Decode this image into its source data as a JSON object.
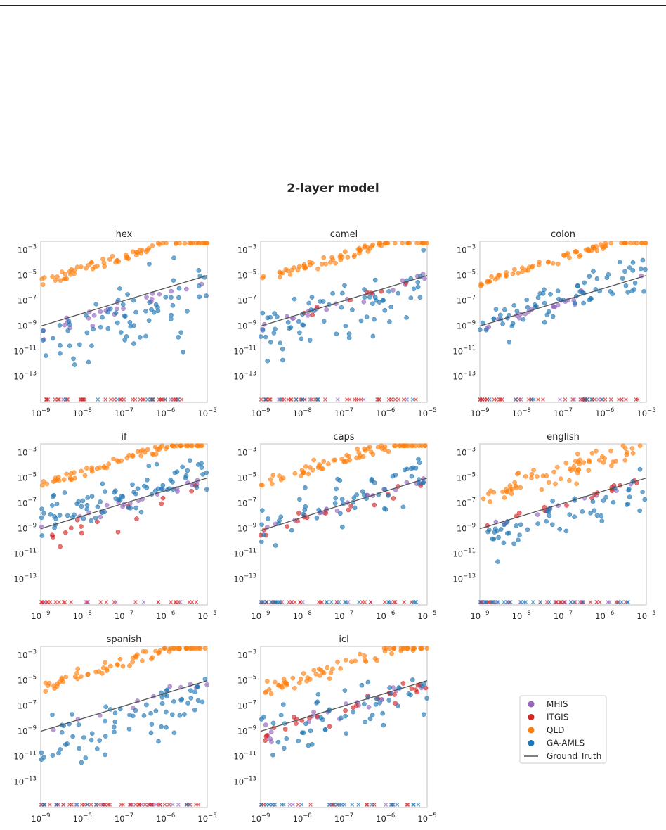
{
  "figure": {
    "title": "2-layer model"
  },
  "colors": {
    "MHIS": "#9467bd",
    "ITGIS": "#d62728",
    "QLD": "#ff7f0e",
    "GA-AMLS": "#1f77b4",
    "Ground Truth": "#555555"
  },
  "legend": {
    "placement": "bottom-right empty cell",
    "entries": [
      {
        "label": "MHIS",
        "kind": "marker",
        "color": "#9467bd"
      },
      {
        "label": "ITGIS",
        "kind": "marker",
        "color": "#d62728"
      },
      {
        "label": "QLD",
        "kind": "marker",
        "color": "#ff7f0e"
      },
      {
        "label": "GA-AMLS",
        "kind": "marker",
        "color": "#1f77b4"
      },
      {
        "label": "Ground Truth",
        "kind": "line",
        "color": "#555555"
      }
    ]
  },
  "chart_data": [
    {
      "type": "scatter",
      "title": "hex",
      "xscale": "log",
      "yscale": "log",
      "xlim": [
        1e-09,
        1e-05
      ],
      "ylim": [
        3e-15,
        0.005
      ],
      "xticks": [
        "10^-9",
        "10^-8",
        "10^-7",
        "10^-6",
        "10^-5"
      ],
      "yticks": [
        "10^-3",
        "10^-5",
        "10^-7",
        "10^-9",
        "10^-11",
        "10^-13"
      ],
      "ground_truth": {
        "x": [
          1e-09,
          1e-05
        ],
        "y": [
          1e-09,
          1e-05
        ]
      },
      "series": [
        {
          "name": "MHIS",
          "approx_log10_spread": [
            -1.0,
            0.3
          ],
          "zero_estimates": "few"
        },
        {
          "name": "ITGIS",
          "approx_log10_spread": null,
          "zero_estimates": "nearly all"
        },
        {
          "name": "QLD",
          "approx_log10_spread": [
            3.0,
            4.0
          ],
          "zero_estimates": "none"
        },
        {
          "name": "GA-AMLS",
          "approx_log10_spread": [
            -5.0,
            2.0
          ],
          "zero_estimates": "few"
        }
      ]
    },
    {
      "type": "scatter",
      "title": "camel",
      "xscale": "log",
      "yscale": "log",
      "xlim": [
        1e-09,
        1e-05
      ],
      "ylim": [
        3e-15,
        0.005
      ],
      "xticks": [
        "10^-9",
        "10^-8",
        "10^-7",
        "10^-6",
        "10^-5"
      ],
      "yticks": [
        "10^-3",
        "10^-5",
        "10^-7",
        "10^-9",
        "10^-11",
        "10^-13"
      ],
      "ground_truth": {
        "x": [
          1e-09,
          1e-05
        ],
        "y": [
          1e-09,
          1e-05
        ]
      },
      "series": [
        {
          "name": "MHIS",
          "approx_log10_spread": [
            -0.6,
            0.4
          ],
          "zero_estimates": "some"
        },
        {
          "name": "ITGIS",
          "approx_log10_spread": [
            -0.4,
            0.4
          ],
          "zero_estimates": "most"
        },
        {
          "name": "QLD",
          "approx_log10_spread": [
            3.2,
            4.0
          ],
          "zero_estimates": "none"
        },
        {
          "name": "GA-AMLS",
          "approx_log10_spread": [
            -3.0,
            1.8
          ],
          "zero_estimates": "few"
        }
      ]
    },
    {
      "type": "scatter",
      "title": "colon",
      "xscale": "log",
      "yscale": "log",
      "xlim": [
        1e-09,
        1e-05
      ],
      "ylim": [
        3e-15,
        0.005
      ],
      "xticks": [
        "10^-9",
        "10^-8",
        "10^-7",
        "10^-6",
        "10^-5"
      ],
      "yticks": [
        "10^-3",
        "10^-5",
        "10^-7",
        "10^-9",
        "10^-11",
        "10^-13"
      ],
      "ground_truth": {
        "x": [
          1e-09,
          1e-05
        ],
        "y": [
          1e-09,
          1e-05
        ]
      },
      "series": [
        {
          "name": "MHIS",
          "approx_log10_spread": [
            -0.6,
            0.3
          ],
          "zero_estimates": "some"
        },
        {
          "name": "ITGIS",
          "approx_log10_spread": null,
          "zero_estimates": "nearly all"
        },
        {
          "name": "QLD",
          "approx_log10_spread": [
            3.0,
            3.8
          ],
          "zero_estimates": "none"
        },
        {
          "name": "GA-AMLS",
          "approx_log10_spread": [
            -1.5,
            2.0
          ],
          "zero_estimates": "few"
        }
      ]
    },
    {
      "type": "scatter",
      "title": "if",
      "xscale": "log",
      "yscale": "log",
      "xlim": [
        1e-09,
        1e-05
      ],
      "ylim": [
        3e-15,
        0.005
      ],
      "xticks": [
        "10^-9",
        "10^-8",
        "10^-7",
        "10^-6",
        "10^-5"
      ],
      "yticks": [
        "10^-3",
        "10^-5",
        "10^-7",
        "10^-9",
        "10^-11",
        "10^-13"
      ],
      "ground_truth": {
        "x": [
          1e-09,
          1e-05
        ],
        "y": [
          1e-09,
          1e-05
        ]
      },
      "series": [
        {
          "name": "MHIS",
          "approx_log10_spread": [
            -0.5,
            0.3
          ],
          "zero_estimates": "some"
        },
        {
          "name": "ITGIS",
          "approx_log10_spread": [
            -2.0,
            0.2
          ],
          "zero_estimates": "many"
        },
        {
          "name": "QLD",
          "approx_log10_spread": [
            3.0,
            4.0
          ],
          "zero_estimates": "none"
        },
        {
          "name": "GA-AMLS",
          "approx_log10_spread": [
            -1.0,
            2.5
          ],
          "zero_estimates": "none"
        }
      ]
    },
    {
      "type": "scatter",
      "title": "caps",
      "xscale": "log",
      "yscale": "log",
      "xlim": [
        1e-09,
        1e-05
      ],
      "ylim": [
        3e-15,
        0.005
      ],
      "xticks": [
        "10^-9",
        "10^-8",
        "10^-7",
        "10^-6",
        "10^-5"
      ],
      "yticks": [
        "10^-3",
        "10^-5",
        "10^-7",
        "10^-9",
        "10^-11",
        "10^-13"
      ],
      "ground_truth": {
        "x": [
          1e-09,
          1e-05
        ],
        "y": [
          7e-10,
          1e-05
        ]
      },
      "series": [
        {
          "name": "MHIS",
          "approx_log10_spread": [
            -0.5,
            0.3
          ],
          "zero_estimates": "some"
        },
        {
          "name": "ITGIS",
          "approx_log10_spread": [
            -1.2,
            0.4
          ],
          "zero_estimates": "many"
        },
        {
          "name": "QLD",
          "approx_log10_spread": [
            3.0,
            4.0
          ],
          "zero_estimates": "none"
        },
        {
          "name": "GA-AMLS",
          "approx_log10_spread": [
            -2.0,
            2.0
          ],
          "zero_estimates": "some"
        }
      ]
    },
    {
      "type": "scatter",
      "title": "english",
      "xscale": "log",
      "yscale": "log",
      "xlim": [
        1e-09,
        1e-05
      ],
      "ylim": [
        3e-15,
        0.005
      ],
      "xticks": [
        "10^-9",
        "10^-8",
        "10^-7",
        "10^-6",
        "10^-5"
      ],
      "yticks": [
        "10^-3",
        "10^-5",
        "10^-7",
        "10^-9",
        "10^-11",
        "10^-13"
      ],
      "ground_truth": {
        "x": [
          1e-09,
          1e-05
        ],
        "y": [
          1e-09,
          1e-05
        ]
      },
      "series": [
        {
          "name": "MHIS",
          "approx_log10_spread": [
            -0.5,
            0.3
          ],
          "zero_estimates": "many"
        },
        {
          "name": "ITGIS",
          "approx_log10_spread": [
            -0.4,
            0.4
          ],
          "zero_estimates": "many"
        },
        {
          "name": "QLD",
          "approx_log10_spread": [
            1.5,
            3.5
          ],
          "zero_estimates": "none"
        },
        {
          "name": "GA-AMLS",
          "approx_log10_spread": [
            -3.0,
            0.8
          ],
          "zero_estimates": "some"
        }
      ]
    },
    {
      "type": "scatter",
      "title": "spanish",
      "xscale": "log",
      "yscale": "log",
      "xlim": [
        1e-09,
        1e-05
      ],
      "ylim": [
        3e-15,
        0.005
      ],
      "xticks": [
        "10^-9",
        "10^-8",
        "10^-7",
        "10^-6",
        "10^-5"
      ],
      "yticks": [
        "10^-3",
        "10^-5",
        "10^-7",
        "10^-9",
        "10^-11",
        "10^-13"
      ],
      "ground_truth": {
        "x": [
          1e-09,
          1e-05
        ],
        "y": [
          1e-09,
          1e-05
        ]
      },
      "series": [
        {
          "name": "MHIS",
          "approx_log10_spread": [
            -0.5,
            0.3
          ],
          "zero_estimates": "many"
        },
        {
          "name": "ITGIS",
          "approx_log10_spread": null,
          "zero_estimates": "nearly all"
        },
        {
          "name": "QLD",
          "approx_log10_spread": [
            3.0,
            4.0
          ],
          "zero_estimates": "none"
        },
        {
          "name": "GA-AMLS",
          "approx_log10_spread": [
            -4.0,
            1.8
          ],
          "zero_estimates": "few"
        }
      ]
    },
    {
      "type": "scatter",
      "title": "icl",
      "xscale": "log",
      "yscale": "log",
      "xlim": [
        1e-09,
        1e-05
      ],
      "ylim": [
        3e-15,
        0.005
      ],
      "xticks": [
        "10^-9",
        "10^-8",
        "10^-7",
        "10^-6",
        "10^-5"
      ],
      "yticks": [
        "10^-3",
        "10^-5",
        "10^-7",
        "10^-9",
        "10^-11",
        "10^-13"
      ],
      "ground_truth": {
        "x": [
          1e-09,
          1e-05
        ],
        "y": [
          1e-09,
          1e-05
        ]
      },
      "series": [
        {
          "name": "MHIS",
          "approx_log10_spread": [
            -1.0,
            0.5
          ],
          "zero_estimates": "some"
        },
        {
          "name": "ITGIS",
          "approx_log10_spread": [
            -1.0,
            0.5
          ],
          "zero_estimates": "some"
        },
        {
          "name": "QLD",
          "approx_log10_spread": [
            2.5,
            4.0
          ],
          "zero_estimates": "none"
        },
        {
          "name": "GA-AMLS",
          "approx_log10_spread": [
            -3.0,
            2.0
          ],
          "zero_estimates": "some"
        }
      ]
    }
  ]
}
